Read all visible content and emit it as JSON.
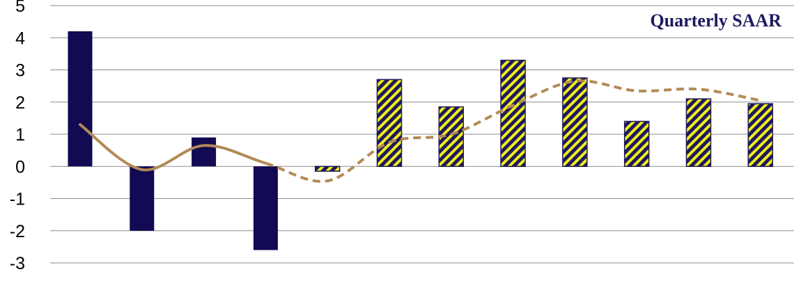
{
  "chart_data": {
    "type": "bar",
    "title": "Quarterly SAAR",
    "xlabel": "",
    "ylabel": "",
    "ylim": [
      -3,
      5
    ],
    "yticks": [
      "5",
      "4",
      "3",
      "2",
      "1",
      "0",
      "-1",
      "-2",
      "-3"
    ],
    "grid": true,
    "legend": "none",
    "bars": [
      {
        "value": 4.2,
        "style": "actual"
      },
      {
        "value": -2.0,
        "style": "actual"
      },
      {
        "value": 0.9,
        "style": "actual"
      },
      {
        "value": -2.6,
        "style": "actual"
      },
      {
        "value": -0.15,
        "style": "forecast"
      },
      {
        "value": 2.7,
        "style": "forecast"
      },
      {
        "value": 1.85,
        "style": "forecast"
      },
      {
        "value": 3.3,
        "style": "forecast"
      },
      {
        "value": 2.75,
        "style": "forecast"
      },
      {
        "value": 1.4,
        "style": "forecast"
      },
      {
        "value": 2.1,
        "style": "forecast"
      },
      {
        "value": 1.95,
        "style": "forecast"
      }
    ],
    "line": {
      "values": [
        1.3,
        -0.1,
        0.65,
        0.1,
        -0.45,
        0.75,
        1.0,
        1.9,
        2.65,
        2.35,
        2.4,
        2.05
      ],
      "solid_through_index": 3
    },
    "colors": {
      "actual_bar": "#120a52",
      "forecast_stripe_a": "#1e1a5e",
      "forecast_stripe_b": "#f2ee1a",
      "line": "#b38a55",
      "grid": "#8c8c8c",
      "title": "#1e1a5e"
    }
  }
}
